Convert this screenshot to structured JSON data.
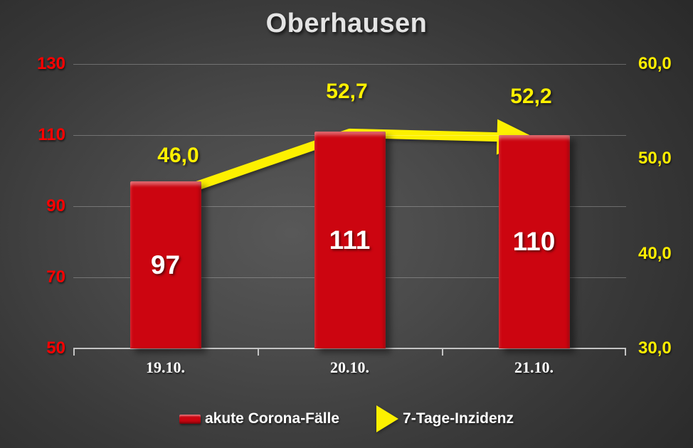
{
  "title": "Oberhausen",
  "colors": {
    "background_edge": "#272727",
    "background_center": "#585858",
    "bar": "#cc0510",
    "bar_highlight": "#f04a42",
    "line": "#fdf000",
    "left_axis_text": "#ff0000",
    "right_axis_text": "#ffee00",
    "bar_value_text": "#ffffff",
    "x_label_text": "#ffffff",
    "title_text": "#e4e4e4"
  },
  "legend": [
    {
      "label": "akute Corona-Fälle",
      "swatch": "red-bar-swatch"
    },
    {
      "label": "7-Tage-Inzidenz",
      "swatch": "yellow-arrow-swatch"
    }
  ],
  "chart_data": {
    "type": "bar",
    "subtype": "combo bar + line with arrowhead",
    "title": "Oberhausen",
    "categories": [
      "19.10.",
      "20.10.",
      "21.10."
    ],
    "series": [
      {
        "name": "akute Corona-Fälle",
        "type": "bar",
        "axis": "left",
        "values": [
          97,
          111,
          110
        ],
        "labels": [
          "97",
          "111",
          "110"
        ],
        "color": "#cc0510"
      },
      {
        "name": "7-Tage-Inzidenz",
        "type": "line",
        "axis": "right",
        "values": [
          46.0,
          52.7,
          52.2
        ],
        "labels": [
          "46,0",
          "52,7",
          "52,2"
        ],
        "color": "#fdf000"
      }
    ],
    "left_axis": {
      "min": 50,
      "max": 130,
      "tick_values": [
        130,
        110,
        90,
        70,
        50
      ],
      "tick_labels": [
        "130",
        "110",
        "90",
        "70",
        "50"
      ],
      "color": "#ff0000"
    },
    "right_axis": {
      "min": 30,
      "max": 60,
      "tick_values": [
        60,
        50,
        40,
        30
      ],
      "tick_labels": [
        "60,0",
        "50,0",
        "40,0",
        "30,0"
      ],
      "color": "#ffee00"
    },
    "grid": "horizontal gridlines at left-axis ticks, light gray on dark",
    "legend_position": "bottom-center"
  }
}
